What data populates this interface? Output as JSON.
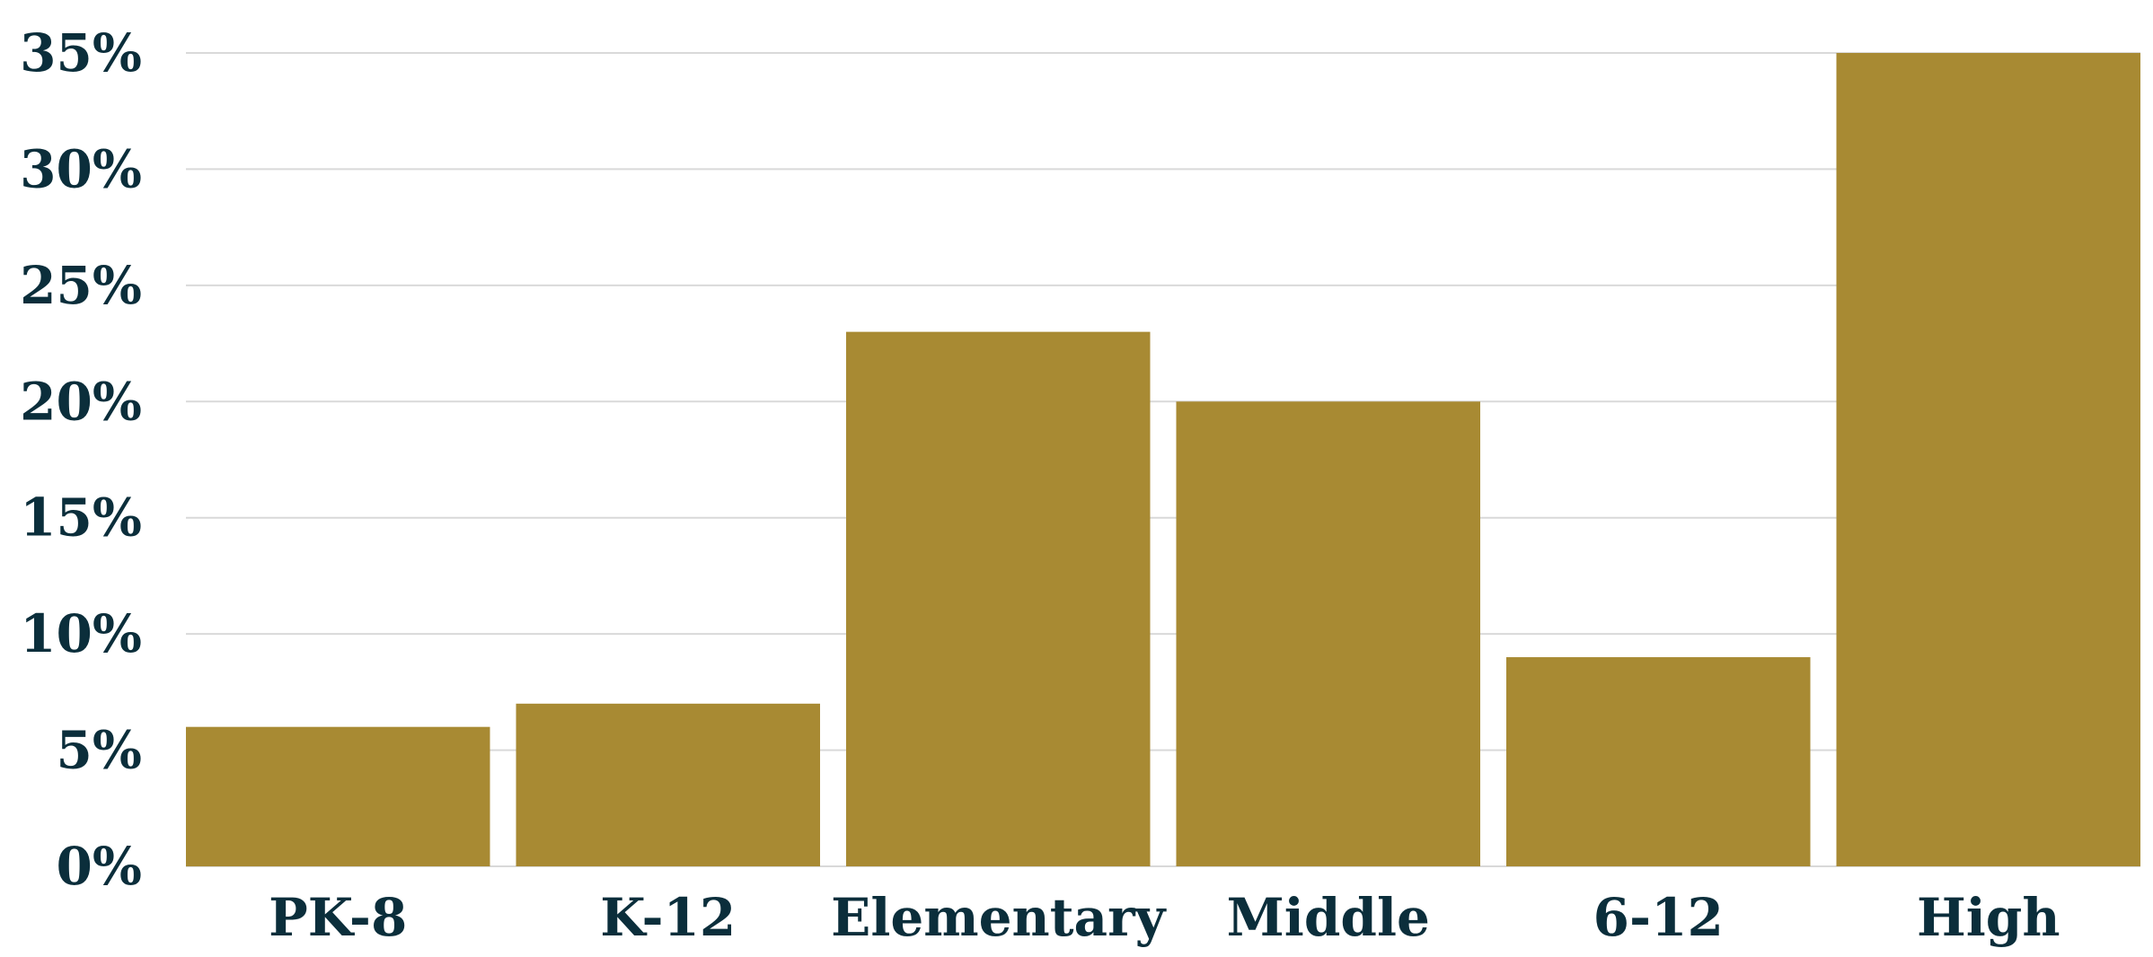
{
  "chart_data": {
    "type": "bar",
    "title": "",
    "xlabel": "",
    "ylabel": "",
    "categories": [
      "PK-8",
      "K-12",
      "Elementary",
      "Middle",
      "6-12",
      "High"
    ],
    "values": [
      6,
      7,
      23,
      20,
      9,
      35
    ],
    "ylim": [
      0,
      35
    ],
    "yticks": [
      0,
      5,
      10,
      15,
      20,
      25,
      30,
      35
    ],
    "ytick_labels": [
      "0%",
      "5%",
      "10%",
      "15%",
      "20%",
      "25%",
      "30%",
      "35%"
    ],
    "grid": true,
    "legend": "none",
    "colors": {
      "bar": "#A88A33",
      "text": "#0B2E3B",
      "grid": "#D9D9D9"
    }
  }
}
